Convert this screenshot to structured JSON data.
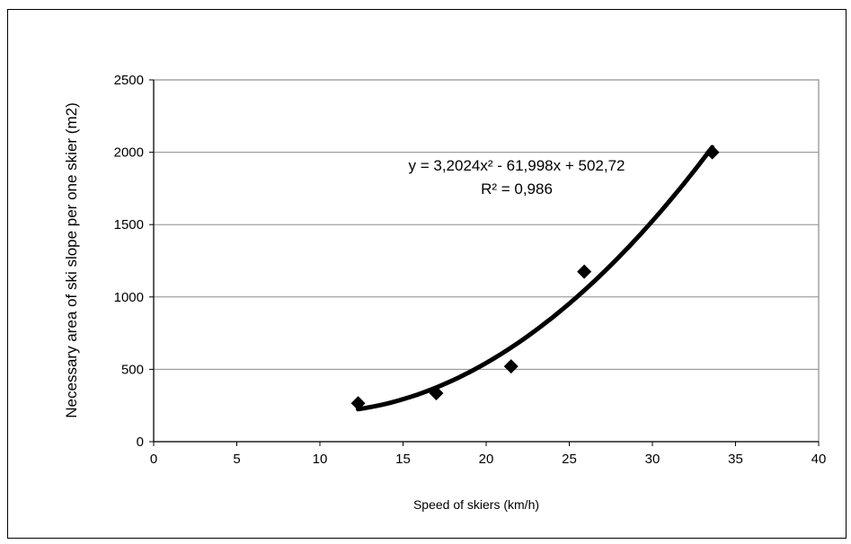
{
  "chart_data": {
    "type": "scatter",
    "xlabel": "Speed of skiers (km/h)",
    "ylabel": "Necessary area of ski slope per one skier (m2)",
    "xlim": [
      0,
      40
    ],
    "ylim": [
      0,
      2500
    ],
    "xticks": [
      0,
      5,
      10,
      15,
      20,
      25,
      30,
      35,
      40
    ],
    "yticks": [
      0,
      500,
      1000,
      1500,
      2000,
      2500
    ],
    "grid": "horizontal",
    "points": [
      {
        "x": 12.3,
        "y": 265
      },
      {
        "x": 17.0,
        "y": 335
      },
      {
        "x": 21.5,
        "y": 520
      },
      {
        "x": 25.9,
        "y": 1175
      },
      {
        "x": 33.6,
        "y": 2000
      }
    ],
    "trendline": {
      "type": "polynomial",
      "coefficients": [
        3.2024,
        -61.998,
        502.72
      ],
      "x_range": [
        12.3,
        33.6
      ],
      "equation_label": "y = 3,2024x² - 61,998x + 502,72",
      "r2_label": "R² = 0,986"
    },
    "colors": {
      "marker": "#000000",
      "trendline": "#000000",
      "grid": "#8c8c8c",
      "plot_border": "#8c8c8c"
    }
  }
}
